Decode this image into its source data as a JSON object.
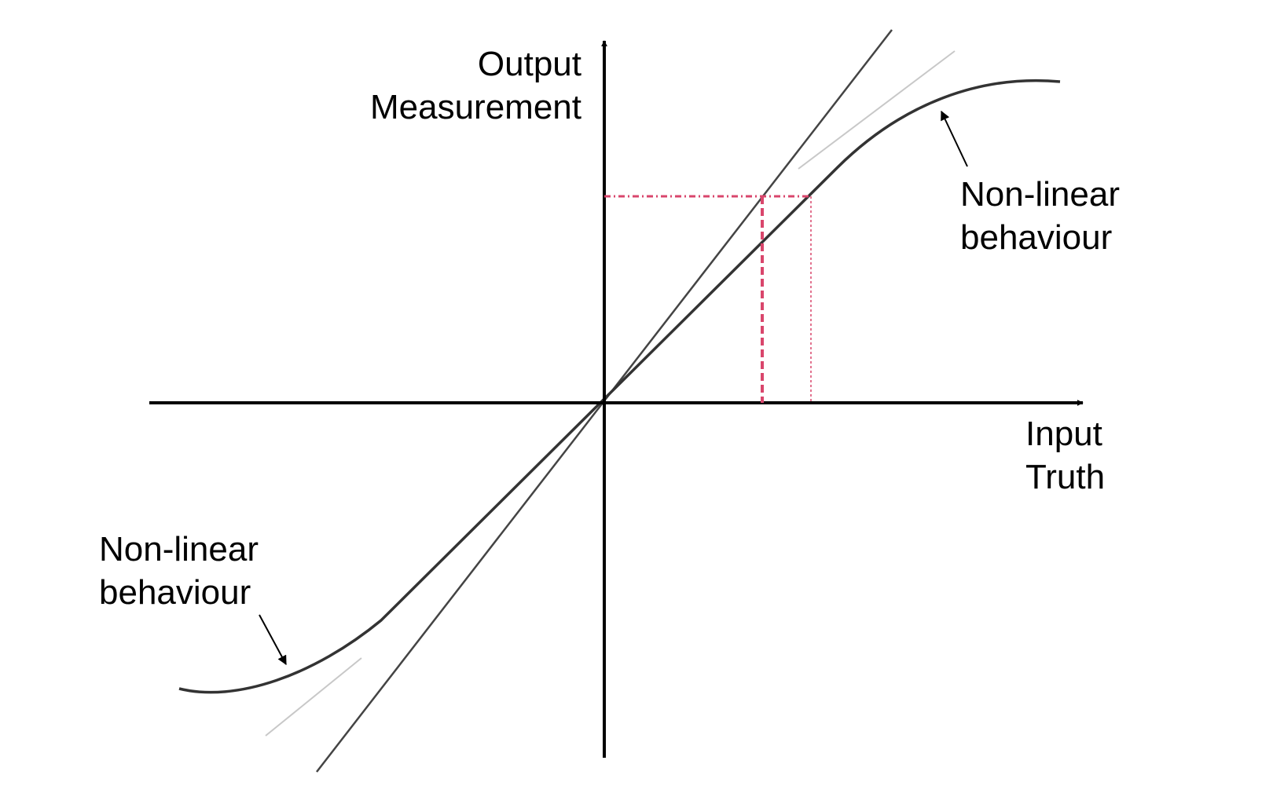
{
  "labels": {
    "y_axis_line1": "Output",
    "y_axis_line2": "Measurement",
    "x_axis_line1": "Input",
    "x_axis_line2": "Truth",
    "annotation_upper_line1": "Non-linear",
    "annotation_upper_line2": "behaviour",
    "annotation_lower_line1": "Non-linear",
    "annotation_lower_line2": "behaviour"
  },
  "colors": {
    "background": "#ffffff",
    "axis": "#000000",
    "ideal_line": "#444444",
    "response_curve": "#333333",
    "tangent_guide": "#c8c8c8",
    "projection_lines": "#d9466c",
    "annotation_arrow": "#000000",
    "text": "#000000"
  }
}
